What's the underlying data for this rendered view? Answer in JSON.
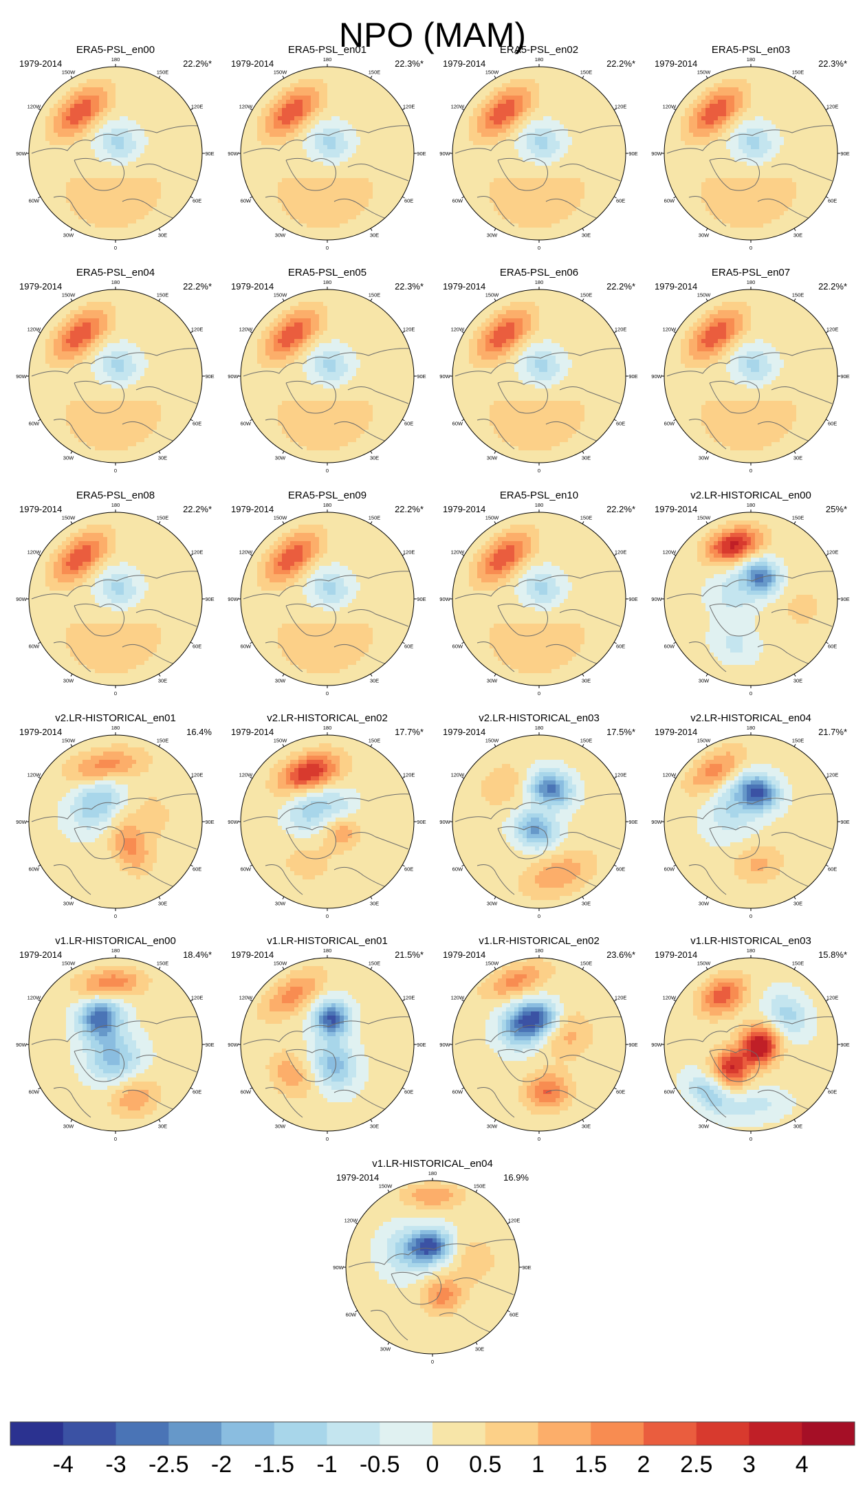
{
  "figure": {
    "title": "NPO (MAM)"
  },
  "chart_data": {
    "type": "polar-map-panels",
    "title": "NPO (MAM)",
    "projection": "north polar stereographic",
    "period": "1979-2014",
    "longitude_labels": [
      "180",
      "150E",
      "120E",
      "90E",
      "60E",
      "30E",
      "0",
      "30W",
      "60W",
      "90W",
      "120W",
      "150W"
    ],
    "colorbar": {
      "tick_labels": [
        "-4",
        "-3",
        "-2.5",
        "-2",
        "-1.5",
        "-1",
        "-0.5",
        "0",
        "0.5",
        "1",
        "1.5",
        "2",
        "2.5",
        "3",
        "4"
      ],
      "colors": [
        "#2b3290",
        "#3b52a4",
        "#4a74b6",
        "#6698c9",
        "#8abde0",
        "#a8d6ea",
        "#c4e5ef",
        "#e0f1f1",
        "#f7e5a8",
        "#fcd088",
        "#fcae6a",
        "#f88c51",
        "#ea5d3e",
        "#d83a2e",
        "#c01f27",
        "#a50f26"
      ]
    },
    "panels": [
      {
        "title": "ERA5-PSL_en00",
        "period": "1979-2014",
        "pct": "22.2%*",
        "pattern": "era"
      },
      {
        "title": "ERA5-PSL_en01",
        "period": "1979-2014",
        "pct": "22.3%*",
        "pattern": "era"
      },
      {
        "title": "ERA5-PSL_en02",
        "period": "1979-2014",
        "pct": "22.2%*",
        "pattern": "era"
      },
      {
        "title": "ERA5-PSL_en03",
        "period": "1979-2014",
        "pct": "22.3%*",
        "pattern": "era"
      },
      {
        "title": "ERA5-PSL_en04",
        "period": "1979-2014",
        "pct": "22.2%*",
        "pattern": "era"
      },
      {
        "title": "ERA5-PSL_en05",
        "period": "1979-2014",
        "pct": "22.3%*",
        "pattern": "era"
      },
      {
        "title": "ERA5-PSL_en06",
        "period": "1979-2014",
        "pct": "22.2%*",
        "pattern": "era"
      },
      {
        "title": "ERA5-PSL_en07",
        "period": "1979-2014",
        "pct": "22.2%*",
        "pattern": "era"
      },
      {
        "title": "ERA5-PSL_en08",
        "period": "1979-2014",
        "pct": "22.2%*",
        "pattern": "era"
      },
      {
        "title": "ERA5-PSL_en09",
        "period": "1979-2014",
        "pct": "22.2%*",
        "pattern": "era"
      },
      {
        "title": "ERA5-PSL_en10",
        "period": "1979-2014",
        "pct": "22.2%*",
        "pattern": "era"
      },
      {
        "title": "v2.LR-HISTORICAL_en00",
        "period": "1979-2014",
        "pct": "25%*",
        "pattern": "v2a"
      },
      {
        "title": "v2.LR-HISTORICAL_en01",
        "period": "1979-2014",
        "pct": "16.4%",
        "pattern": "v2b"
      },
      {
        "title": "v2.LR-HISTORICAL_en02",
        "period": "1979-2014",
        "pct": "17.7%*",
        "pattern": "v2c"
      },
      {
        "title": "v2.LR-HISTORICAL_en03",
        "period": "1979-2014",
        "pct": "17.5%*",
        "pattern": "v2d"
      },
      {
        "title": "v2.LR-HISTORICAL_en04",
        "period": "1979-2014",
        "pct": "21.7%*",
        "pattern": "v2e"
      },
      {
        "title": "v1.LR-HISTORICAL_en00",
        "period": "1979-2014",
        "pct": "18.4%*",
        "pattern": "v1a"
      },
      {
        "title": "v1.LR-HISTORICAL_en01",
        "period": "1979-2014",
        "pct": "21.5%*",
        "pattern": "v1b"
      },
      {
        "title": "v1.LR-HISTORICAL_en02",
        "period": "1979-2014",
        "pct": "23.6%*",
        "pattern": "v1c"
      },
      {
        "title": "v1.LR-HISTORICAL_en03",
        "period": "1979-2014",
        "pct": "15.8%*",
        "pattern": "v1d"
      },
      {
        "title": "v1.LR-HISTORICAL_en04",
        "period": "1979-2014",
        "pct": "16.9%",
        "pattern": "v1e"
      }
    ]
  }
}
